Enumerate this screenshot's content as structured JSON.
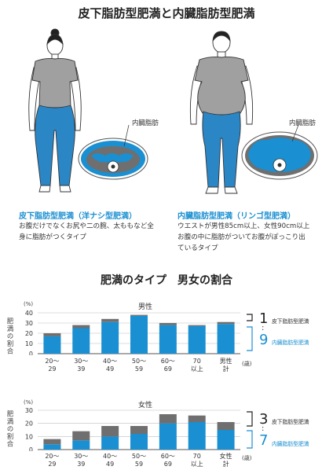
{
  "header": {
    "title": "皮下脂肪型肥満と内臓脂肪型肥満"
  },
  "types": {
    "subcutaneous": {
      "heading": "皮下脂肪型肥満（洋ナシ型肥満）",
      "desc_line1": "お腹だけでなくお尻や二の腕、太ももなど全",
      "desc_line2": "身に脂肪がつくタイプ"
    },
    "visceral": {
      "heading": "内臓脂肪型肥満（リンゴ型肥満）",
      "desc_line1": "ウエストが男性85cm以上、女性90cm以上",
      "desc_line2": "お腹の中に脂肪がついてお腹がぽっこり出",
      "desc_line3": "ているタイプ",
      "callout": "内臓脂肪"
    },
    "colors": {
      "visceral_fat": "#1a8fd1",
      "clothes_top": "#9e9e9e",
      "clothes_bottom": "#2b86c5",
      "skin": "#ffffff"
    }
  },
  "section": {
    "title": "肥満のタイプ　男女の割合"
  },
  "shared": {
    "ylabel": "肥満の割合",
    "unit": "(%)",
    "age_suffix": "(歳)",
    "colors": {
      "visceral": "#1a8fd1",
      "subcutaneous": "#6f6f6f"
    }
  },
  "chart_data": [
    {
      "type": "bar",
      "stacked": true,
      "title": "男性",
      "ylabel": "肥満の割合",
      "ylim": [
        0,
        40
      ],
      "yticks": [
        0,
        10,
        20,
        30,
        40
      ],
      "categories": [
        [
          "20～",
          "29"
        ],
        [
          "30～",
          "39"
        ],
        [
          "40～",
          "49"
        ],
        [
          "50～",
          "59"
        ],
        [
          "60～",
          "69"
        ],
        [
          "70",
          "以上"
        ],
        [
          "男性",
          "計"
        ]
      ],
      "series": [
        {
          "values": [
            17,
            25,
            31,
            37,
            28,
            27,
            29
          ]
        },
        {
          "values": [
            3,
            3,
            3,
            1,
            2,
            1,
            2
          ]
        }
      ],
      "ratio": {
        "subcutaneous": "1",
        "subcutaneous_label": "皮下脂肪型肥満",
        "visceral": "9",
        "visceral_label": "内臓脂肪型肥満"
      }
    },
    {
      "type": "bar",
      "stacked": true,
      "title": "女性",
      "ylabel": "肥満の割合",
      "ylim": [
        0,
        30
      ],
      "yticks": [
        0,
        10,
        20,
        30
      ],
      "categories": [
        [
          "20～",
          "29"
        ],
        [
          "30～",
          "39"
        ],
        [
          "40～",
          "49"
        ],
        [
          "50～",
          "59"
        ],
        [
          "60～",
          "69"
        ],
        [
          "70",
          "以上"
        ],
        [
          "女性",
          "計"
        ]
      ],
      "series": [
        {
          "values": [
            4,
            7,
            10,
            12,
            20,
            21,
            15
          ]
        },
        {
          "values": [
            4,
            7,
            8,
            6,
            7,
            5,
            6
          ]
        }
      ],
      "ratio": {
        "subcutaneous": "3",
        "subcutaneous_label": "皮下脂肪型肥満",
        "visceral": "7",
        "visceral_label": "内臓脂肪型肥満"
      }
    }
  ]
}
